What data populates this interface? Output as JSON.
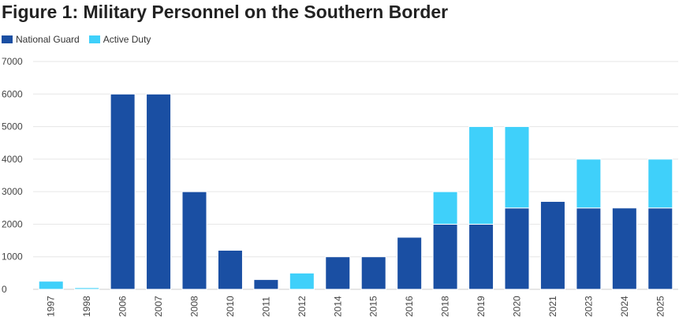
{
  "chart_data": {
    "type": "bar",
    "stacked": true,
    "title": "Figure 1: Military Personnel on the Southern Border",
    "xlabel": "",
    "ylabel": "",
    "ylim": [
      0,
      7000
    ],
    "yticks": [
      0,
      1000,
      2000,
      3000,
      4000,
      5000,
      6000,
      7000
    ],
    "grid": true,
    "legend_position": "top-left",
    "categories": [
      "1997",
      "1998",
      "2006",
      "2007",
      "2008",
      "2010",
      "2011",
      "2012",
      "2014",
      "2015",
      "2016",
      "2018",
      "2019",
      "2020",
      "2021",
      "2023",
      "2024",
      "2025"
    ],
    "series": [
      {
        "name": "National Guard",
        "color": "#1a4fa3",
        "values": [
          0,
          0,
          6000,
          6000,
          3000,
          1200,
          300,
          0,
          1000,
          1000,
          1600,
          2000,
          2000,
          2500,
          2700,
          2500,
          2500,
          2500
        ]
      },
      {
        "name": "Active Duty",
        "color": "#3fd0fa",
        "values": [
          250,
          50,
          0,
          0,
          0,
          0,
          0,
          500,
          0,
          0,
          0,
          1000,
          3000,
          2500,
          0,
          1500,
          0,
          1500
        ]
      }
    ]
  }
}
